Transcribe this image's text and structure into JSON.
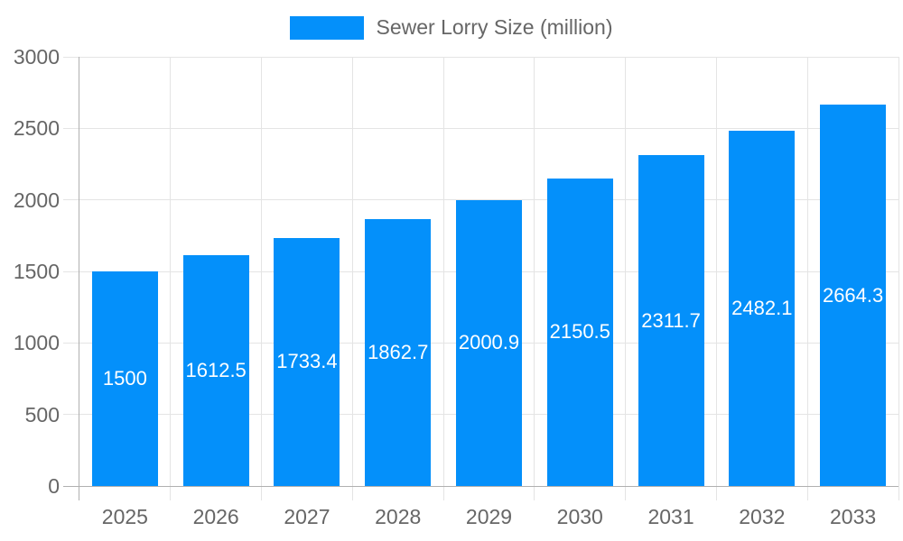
{
  "chart_data": {
    "type": "bar",
    "title": "",
    "legend": "Sewer Lorry Size (million)",
    "legend_position": "top",
    "categories": [
      "2025",
      "2026",
      "2027",
      "2028",
      "2029",
      "2030",
      "2031",
      "2032",
      "2033"
    ],
    "series": [
      {
        "name": "Sewer Lorry Size (million)",
        "values": [
          1500,
          1612.5,
          1733.4,
          1862.7,
          2000.9,
          2150.5,
          2311.7,
          2482.1,
          2664.3
        ]
      }
    ],
    "value_labels": [
      "1500",
      "1612.5",
      "1733.4",
      "1862.7",
      "2000.9",
      "2150.5",
      "2311.7",
      "2482.1",
      "2664.3"
    ],
    "xlabel": "",
    "ylabel": "",
    "ylim": [
      0,
      3000
    ],
    "yticks": [
      0,
      500,
      1000,
      1500,
      2000,
      2500,
      3000
    ],
    "ytick_labels": [
      "0",
      "500",
      "1000",
      "1500",
      "2000",
      "2500",
      "3000"
    ],
    "grid": true,
    "colors": {
      "bar": "#0490FA",
      "grid": "#E4E4E4",
      "axis": "#B0B0B0",
      "text": "#666666",
      "data_label": "#FFFFFF"
    }
  }
}
